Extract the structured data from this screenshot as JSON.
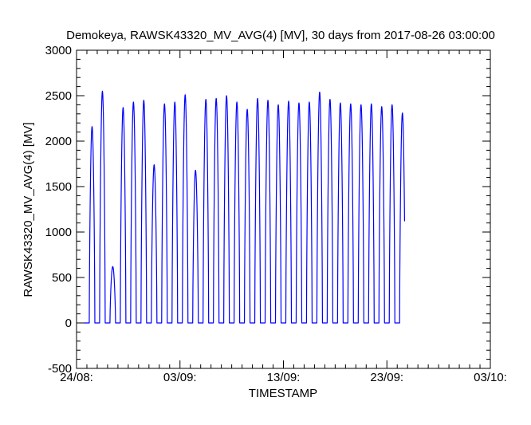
{
  "chart_data": {
    "type": "line",
    "title": "Demokeya, RAWSK43320_MV_AVG(4)  [MV], 30 days from  2017-08-26 03:00:00",
    "xlabel": "TIMESTAMP",
    "ylabel": "RAWSK43320_MV_AVG(4)  [MV]",
    "ylim": [
      -500,
      3000
    ],
    "xlim": [
      "2017-08-24",
      "2017-10-03"
    ],
    "yticks": [
      -500,
      0,
      500,
      1000,
      1500,
      2000,
      2500,
      3000
    ],
    "xticks": [
      {
        "date": "2017-08-24",
        "label": "24/08:"
      },
      {
        "date": "2017-09-03",
        "label": "03/09:"
      },
      {
        "date": "2017-09-13",
        "label": "13/09:"
      },
      {
        "date": "2017-09-23",
        "label": "23/09:"
      },
      {
        "date": "2017-10-03",
        "label": "03/10:"
      }
    ],
    "grid": false,
    "line_color": "#0000ff",
    "x_range": [
      "2017-08-24 17:00",
      "2017-09-24 17:00"
    ],
    "daily_peaks": [
      {
        "date": "2017-08-25",
        "value": 2160
      },
      {
        "date": "2017-08-26",
        "value": 2550
      },
      {
        "date": "2017-08-27",
        "value": 620
      },
      {
        "date": "2017-08-28",
        "value": 2370
      },
      {
        "date": "2017-08-29",
        "value": 2430
      },
      {
        "date": "2017-08-30",
        "value": 2450
      },
      {
        "date": "2017-08-31",
        "value": 1740
      },
      {
        "date": "2017-09-01",
        "value": 2410
      },
      {
        "date": "2017-09-02",
        "value": 2430
      },
      {
        "date": "2017-09-03",
        "value": 2510
      },
      {
        "date": "2017-09-04",
        "value": 1680
      },
      {
        "date": "2017-09-05",
        "value": 2460
      },
      {
        "date": "2017-09-06",
        "value": 2470
      },
      {
        "date": "2017-09-07",
        "value": 2500
      },
      {
        "date": "2017-09-08",
        "value": 2430
      },
      {
        "date": "2017-09-09",
        "value": 2350
      },
      {
        "date": "2017-09-10",
        "value": 2470
      },
      {
        "date": "2017-09-11",
        "value": 2450
      },
      {
        "date": "2017-09-12",
        "value": 2400
      },
      {
        "date": "2017-09-13",
        "value": 2440
      },
      {
        "date": "2017-09-14",
        "value": 2420
      },
      {
        "date": "2017-09-15",
        "value": 2430
      },
      {
        "date": "2017-09-16",
        "value": 2540
      },
      {
        "date": "2017-09-17",
        "value": 2460
      },
      {
        "date": "2017-09-18",
        "value": 2420
      },
      {
        "date": "2017-09-19",
        "value": 2410
      },
      {
        "date": "2017-09-20",
        "value": 2400
      },
      {
        "date": "2017-09-21",
        "value": 2410
      },
      {
        "date": "2017-09-22",
        "value": 2380
      },
      {
        "date": "2017-09-23",
        "value": 2400
      },
      {
        "date": "2017-09-24",
        "value": 2310
      }
    ]
  }
}
